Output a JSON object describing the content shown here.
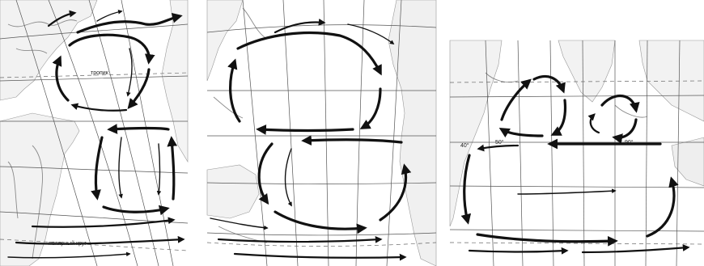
{
  "panels": [
    {
      "name": "atlantic",
      "labels": {
        "tropic": "тропик",
        "polar_circle": "полярный круг"
      }
    },
    {
      "name": "pacific",
      "labels": {}
    },
    {
      "name": "indian",
      "labels": {
        "lon_40": "40°",
        "lon_50": "50°",
        "lon_90": "90°"
      }
    }
  ],
  "colors": {
    "ink": "#111111",
    "grid": "#555555",
    "land": "#d9d9d9",
    "coast": "#8a8a8a"
  }
}
